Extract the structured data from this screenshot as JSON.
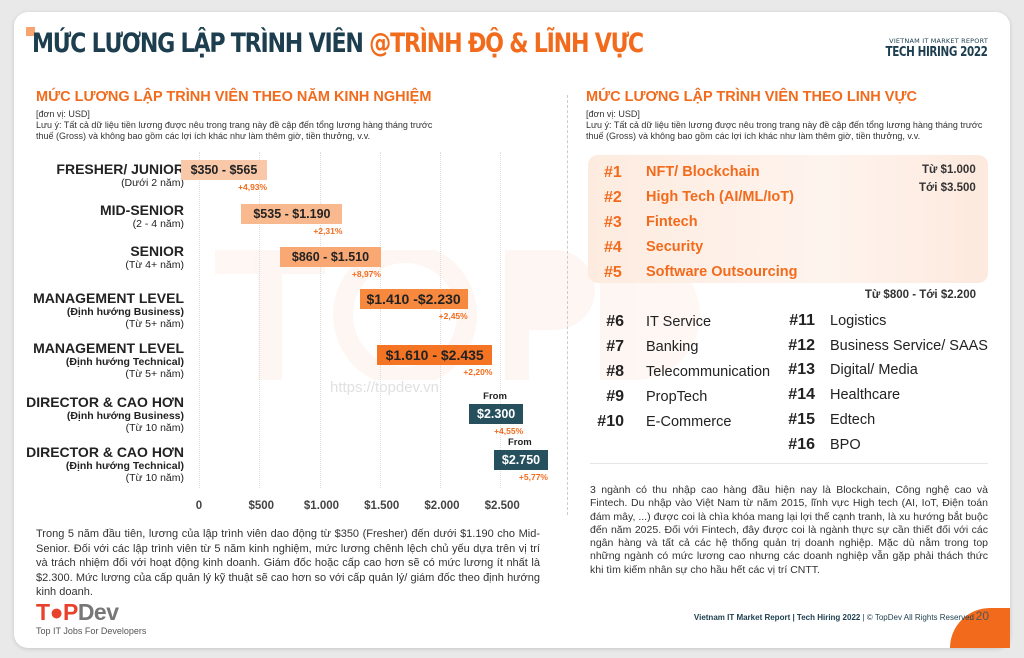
{
  "header": {
    "title_dark": "MỨC LƯƠNG LẬP TRÌNH VIÊN ",
    "title_accent": "@TRÌNH ĐỘ & LĨNH VỰC",
    "brand_small": "VIETNAM IT MARKET REPORT",
    "brand_big": "TECH HIRING 2022"
  },
  "left": {
    "heading": "MỨC LƯƠNG LẬP TRÌNH VIÊN THEO NĂM KINH NGHIỆM",
    "unit": "[đơn vị: USD]",
    "note": "Lưu ý: Tất cả dữ liệu tiền lương được nêu trong trang này đề cập đến tổng lương hàng tháng trước thuế (Gross) và không bao gồm các lợi ích khác như làm thêm giờ, tiền thưởng, v.v.",
    "paragraph": "Trong 5 năm đầu tiên, lương của lập trình viên dao động từ $350 (Fresher) đến dưới $1.190 cho Mid-Senior. Đối với các lập trình viên từ 5 năm kinh nghiệm, mức lương chênh lệch chủ yếu dựa trên vị trí và trách nhiệm đối với hoạt động kinh doanh. Giám đốc hoặc cấp cao hơn sẽ có mức lương ít nhất là $2.300. Mức lương của cấp quản lý kỹ thuật sẽ cao hơn so với cấp quản lý/ giám đốc theo định hướng kinh doanh."
  },
  "chart_data": {
    "type": "bar",
    "subtype": "floating-range",
    "unit": "USD",
    "xlim": [
      0,
      2900
    ],
    "x_ticks": [
      "0",
      "$500",
      "$1.000",
      "$1.500",
      "$2.000",
      "$2.500"
    ],
    "grid": true,
    "rows": [
      {
        "title": "FRESHER/ JUNIOR",
        "sub1": "",
        "sub2": "(Dưới 2 năm)",
        "min": 350,
        "max": 565,
        "label": "$350 - $565",
        "change": "+4,93%",
        "color": "#f8c8a8"
      },
      {
        "title": "MID-SENIOR",
        "sub1": "",
        "sub2": "(2 - 4 năm)",
        "min": 535,
        "max": 1190,
        "label": "$535 - $1.190",
        "change": "+2,31%",
        "color": "#f9b98e"
      },
      {
        "title": "SENIOR",
        "sub1": "",
        "sub2": "(Từ 4+ năm)",
        "min": 860,
        "max": 1510,
        "label": "$860 - $1.510",
        "change": "+8,97%",
        "color": "#f9a874"
      },
      {
        "title": "MANAGEMENT LEVEL",
        "sub1": "(Định hướng Business)",
        "sub2": "(Từ 5+ năm)",
        "min": 1410,
        "max": 2230,
        "label": "$1.410 -$2.230",
        "change": "+2,45%",
        "color": "#f7893f"
      },
      {
        "title": "MANAGEMENT LEVEL",
        "sub1": "(Định hướng Technical)",
        "sub2": "(Từ 5+ năm)",
        "min": 1610,
        "max": 2435,
        "label": "$1.610 - $2.435",
        "change": "+2,20%",
        "color": "#f47424"
      },
      {
        "title": "DIRECTOR & CAO HƠN",
        "sub1": "(Định hướng Business)",
        "sub2": "(Từ 10 năm)",
        "from": 2300,
        "from_label": "From",
        "label": "$2.300",
        "change": "+4,55%",
        "color": "#27505f"
      },
      {
        "title": "DIRECTOR & CAO HƠN",
        "sub1": "(Định hướng Technical)",
        "sub2": "(Từ 10 năm)",
        "from": 2750,
        "from_label": "From",
        "label": "$2.750",
        "change": "+5,77%",
        "color": "#27505f"
      }
    ]
  },
  "right": {
    "heading": "MỨC LƯƠNG LẬP TRÌNH VIÊN THEO LINH VỰC",
    "unit": "[đơn vị: USD]",
    "note": "Lưu ý: Tất cả dữ liệu tiền lương được nêu trong trang này đề cập đến tổng lương hàng tháng trước thuế (Gross) và không bao gồm các lợi ích khác như làm thêm giờ, tiền thưởng, v.v.",
    "top_range_from": "Từ $1.000",
    "top_range_to": "Tới $3.500",
    "top": [
      {
        "rank": "#1",
        "name": "NFT/ Blockchain"
      },
      {
        "rank": "#2",
        "name": "High Tech (AI/ML/IoT)"
      },
      {
        "rank": "#3",
        "name": "Fintech"
      },
      {
        "rank": "#4",
        "name": "Security"
      },
      {
        "rank": "#5",
        "name": "Software Outsourcing"
      }
    ],
    "rest_range": "Từ $800 - Tới $2.200",
    "col1": [
      {
        "rank": "#6",
        "name": "IT Service"
      },
      {
        "rank": "#7",
        "name": "Banking"
      },
      {
        "rank": "#8",
        "name": "Telecommunication"
      },
      {
        "rank": "#9",
        "name": "PropTech"
      },
      {
        "rank": "#10",
        "name": "E-Commerce"
      }
    ],
    "col2": [
      {
        "rank": "#11",
        "name": "Logistics"
      },
      {
        "rank": "#12",
        "name": "Business Service/ SAAS"
      },
      {
        "rank": "#13",
        "name": "Digital/ Media"
      },
      {
        "rank": "#14",
        "name": "Healthcare"
      },
      {
        "rank": "#15",
        "name": "Edtech"
      },
      {
        "rank": "#16",
        "name": "BPO"
      }
    ],
    "paragraph": "3 ngành có thu nhập cao hàng đầu hiện nay là Blockchain, Công nghệ cao và Fintech. Du nhập vào Việt Nam từ năm 2015, lĩnh vực High tech (AI, IoT, Điện toán đám mây, ...) được coi là chìa khóa mang lại lợi thế cạnh tranh, là xu hướng bắt buộc đến năm 2025. Đối với Fintech, đây được coi là ngành thực sự cần thiết đối với các ngân hàng và tất cả các hệ thống quản trị doanh nghiệp. Mặc dù nằm trong top những ngành có mức lương cao nhưng các doanh nghiệp vẫn gặp phải thách thức khi tìm kiếm nhân sự cho hầu hết các vị trí CNTT."
  },
  "watermark": {
    "text": "TOPDev",
    "url": "https://topdev.vn"
  },
  "logo": {
    "text": "TOPDev",
    "tagline": "Top IT Jobs For Developers"
  },
  "footer": {
    "text": "Vietnam IT Market Report | Tech Hiring 2022",
    "rights": " | © TopDev All Rights Reserved",
    "page": "20"
  },
  "colors": {
    "accent": "#f26b1d",
    "dark": "#1c3e4e"
  }
}
